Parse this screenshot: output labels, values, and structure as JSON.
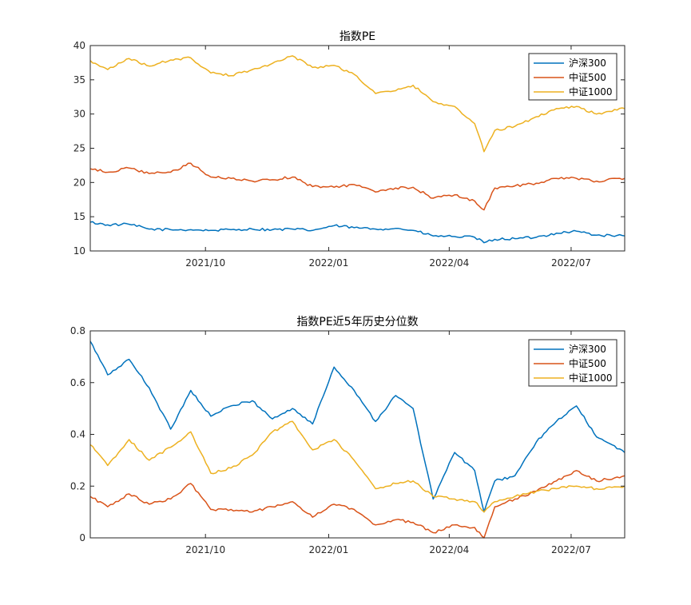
{
  "chart_data": [
    {
      "type": "line",
      "title": "指数PE",
      "xlabel": "",
      "ylabel": "",
      "x_ticks": [
        "2021/10",
        "2022/01",
        "2022/04",
        "2022/07"
      ],
      "x_tick_dates": [
        "2021-10-01",
        "2022-01-01",
        "2022-04-01",
        "2022-07-01"
      ],
      "x_range": [
        "2021-07-07",
        "2022-08-10"
      ],
      "y_ticks": [
        10,
        15,
        20,
        25,
        30,
        35,
        40
      ],
      "ylim": [
        10,
        40
      ],
      "grid": false,
      "legend_position": "top-right",
      "dates": [
        "2021-07-07",
        "2021-07-20",
        "2021-08-05",
        "2021-08-20",
        "2021-09-05",
        "2021-09-20",
        "2021-10-05",
        "2021-10-20",
        "2021-11-05",
        "2021-11-20",
        "2021-12-05",
        "2021-12-20",
        "2022-01-05",
        "2022-01-20",
        "2022-02-05",
        "2022-02-20",
        "2022-03-05",
        "2022-03-20",
        "2022-04-05",
        "2022-04-20",
        "2022-04-27",
        "2022-05-05",
        "2022-05-20",
        "2022-06-05",
        "2022-06-20",
        "2022-07-05",
        "2022-07-20",
        "2022-08-10"
      ],
      "series": [
        {
          "name": "沪深300",
          "color": "#0072BD",
          "values": [
            14.2,
            13.8,
            13.9,
            13.2,
            13.1,
            13.1,
            13.0,
            13.1,
            13.2,
            13.1,
            13.2,
            13.0,
            13.7,
            13.4,
            13.2,
            13.3,
            13.0,
            12.2,
            12.1,
            12.0,
            11.2,
            11.7,
            11.8,
            12.0,
            12.6,
            12.9,
            12.3,
            12.2
          ]
        },
        {
          "name": "中证500",
          "color": "#D95319",
          "values": [
            22.0,
            21.5,
            22.1,
            21.3,
            21.5,
            22.8,
            20.8,
            20.6,
            20.2,
            20.4,
            20.8,
            19.4,
            19.3,
            19.7,
            18.6,
            19.2,
            19.3,
            17.7,
            18.2,
            17.3,
            16.0,
            19.2,
            19.5,
            19.9,
            20.6,
            20.6,
            20.2,
            20.6
          ]
        },
        {
          "name": "中证1000",
          "color": "#EDB120",
          "values": [
            37.8,
            36.5,
            38.1,
            37.0,
            37.9,
            38.2,
            36.0,
            35.6,
            36.5,
            37.4,
            38.5,
            36.8,
            37.1,
            35.8,
            33.0,
            33.4,
            34.2,
            31.8,
            31.1,
            28.6,
            24.5,
            27.6,
            28.2,
            29.6,
            30.8,
            31.1,
            30.0,
            30.8
          ]
        }
      ]
    },
    {
      "type": "line",
      "title": "指数PE近5年历史分位数",
      "xlabel": "",
      "ylabel": "",
      "x_ticks": [
        "2021/10",
        "2022/01",
        "2022/04",
        "2022/07"
      ],
      "x_tick_dates": [
        "2021-10-01",
        "2022-01-01",
        "2022-04-01",
        "2022-07-01"
      ],
      "x_range": [
        "2021-07-07",
        "2022-08-10"
      ],
      "y_ticks": [
        0,
        0.2,
        0.4,
        0.6,
        0.8
      ],
      "ylim": [
        0,
        0.8
      ],
      "grid": false,
      "legend_position": "top-right",
      "dates": [
        "2021-07-07",
        "2021-07-20",
        "2021-08-05",
        "2021-08-20",
        "2021-09-05",
        "2021-09-20",
        "2021-10-05",
        "2021-10-20",
        "2021-11-05",
        "2021-11-20",
        "2021-12-05",
        "2021-12-20",
        "2022-01-05",
        "2022-01-20",
        "2022-02-05",
        "2022-02-20",
        "2022-03-05",
        "2022-03-20",
        "2022-04-05",
        "2022-04-20",
        "2022-04-27",
        "2022-05-05",
        "2022-05-20",
        "2022-06-05",
        "2022-06-20",
        "2022-07-05",
        "2022-07-20",
        "2022-08-10"
      ],
      "series": [
        {
          "name": "沪深300",
          "color": "#0072BD",
          "values": [
            0.76,
            0.63,
            0.69,
            0.58,
            0.42,
            0.57,
            0.47,
            0.51,
            0.53,
            0.46,
            0.5,
            0.44,
            0.66,
            0.57,
            0.45,
            0.55,
            0.5,
            0.15,
            0.33,
            0.26,
            0.1,
            0.22,
            0.24,
            0.37,
            0.45,
            0.51,
            0.39,
            0.33
          ]
        },
        {
          "name": "中证500",
          "color": "#D95319",
          "values": [
            0.16,
            0.12,
            0.17,
            0.13,
            0.15,
            0.21,
            0.11,
            0.11,
            0.1,
            0.12,
            0.14,
            0.08,
            0.13,
            0.11,
            0.05,
            0.07,
            0.06,
            0.02,
            0.05,
            0.04,
            0.0,
            0.12,
            0.15,
            0.18,
            0.22,
            0.26,
            0.22,
            0.24
          ]
        },
        {
          "name": "中证1000",
          "color": "#EDB120",
          "values": [
            0.36,
            0.28,
            0.38,
            0.3,
            0.35,
            0.41,
            0.25,
            0.27,
            0.32,
            0.41,
            0.45,
            0.34,
            0.38,
            0.3,
            0.19,
            0.21,
            0.22,
            0.16,
            0.15,
            0.14,
            0.1,
            0.14,
            0.16,
            0.18,
            0.19,
            0.2,
            0.19,
            0.2
          ]
        }
      ]
    }
  ]
}
